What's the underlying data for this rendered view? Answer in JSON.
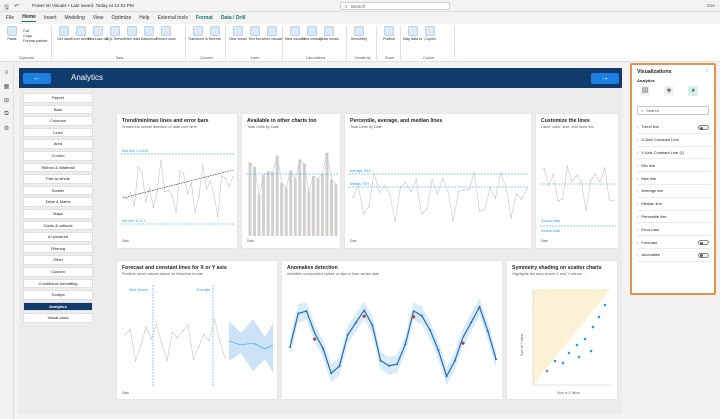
{
  "titlebar": {
    "qa_icons": [
      "save-icon",
      "undo-icon"
    ],
    "title": "Power BI Visuals • Last saved: Today at 12:51 PM",
    "search_icon": "⌕",
    "search": "Search",
    "user": "Zoe"
  },
  "tabs": [
    "File",
    "Home",
    "Insert",
    "Modeling",
    "View",
    "Optimize",
    "Help",
    "External tools",
    "Format",
    "Data / Drill"
  ],
  "ribbon": {
    "groups": [
      {
        "name": "Clipboard",
        "small": [
          "Cut",
          "Copy",
          "Format painter"
        ],
        "buttons": [
          "Paste"
        ]
      },
      {
        "name": "Data",
        "buttons": [
          "Get data",
          "Excel workbook",
          "OneLake data hub",
          "SQL Server",
          "Enter data",
          "Dataverse",
          "Recent sources"
        ]
      },
      {
        "name": "Queries",
        "buttons": [
          "Transform data",
          "Refresh"
        ]
      },
      {
        "name": "Insert",
        "buttons": [
          "New visual",
          "Text box",
          "More visuals"
        ]
      },
      {
        "name": "Calculations",
        "buttons": [
          "New visual calculation",
          "New measure",
          "Quick measure"
        ]
      },
      {
        "name": "Sensitivity",
        "buttons": [
          "Sensitivity"
        ]
      },
      {
        "name": "Share",
        "buttons": [
          "Publish"
        ]
      },
      {
        "name": "Copilot",
        "buttons": [
          "Map data to ...",
          "Copilot"
        ]
      }
    ]
  },
  "leftnav": {
    "icons": [
      "≡",
      "▦",
      "⊞",
      "⧉",
      "⚙"
    ]
  },
  "page": {
    "title": "Analytics",
    "back_icon": "←",
    "next_icon": "→",
    "sidebar": [
      "Report",
      "Bars",
      "Columns",
      "Lines",
      "Area",
      "Combo",
      "Ribbon & Waterfall",
      "Part-to-whole",
      "Scatter",
      "Table & Matrix",
      "Maps",
      "Cards & callouts",
      "AI powered",
      "Filtering",
      "Other",
      "Custom",
      "Conditional formatting",
      "Tooltips",
      "Analytics",
      "Visual calcs"
    ],
    "active_item": "Analytics"
  },
  "cards": [
    {
      "title": "Trend/min/max lines and error bars",
      "sub": "Shows the overall direction of data over time",
      "labels": {
        "top": "Max line: 174,449",
        "mid": "Min line: 41,171"
      },
      "axis": "Date"
    },
    {
      "title": "Available in other charts too",
      "sub": "Total Units by Date",
      "axis": "Date"
    },
    {
      "title": "Percentile, average, and median lines",
      "sub": "Total Units by Date",
      "labels": {
        "a": "Average: 99,9 ...",
        "b": "Median: 79,9 ..."
      },
      "axis": "Date"
    },
    {
      "title": "Customize the lines",
      "sub": "Label, color, size, and more too",
      "labels": {
        "a": "Custom label",
        "b": "Custom label"
      },
      "axis": "Date"
    },
    {
      "title": "Forecast and constant lines for X or Y axis",
      "sub": "Predicts future values based on historical trends",
      "labels": {
        "a": "Start of trend",
        "b": "End date"
      },
      "axis": "Date"
    },
    {
      "title": "Anomalies detection",
      "sub": "Identifies unexpected spikes or dips in time series data"
    },
    {
      "title": "Symmetry shading on scatter charts",
      "sub": "Highlights the area where X and Y values ...",
      "xlabel": "Sum of X Value",
      "ylabel": "Sum of Y Value"
    }
  ],
  "visualizations": {
    "title": "Visualizations",
    "close_icon": "‹",
    "subtitle": "Analytics",
    "tool_icons": [
      "▤",
      "◈",
      "◕"
    ],
    "search_icon": "⌕",
    "search_placeholder": "Search",
    "chevron": "›",
    "items": [
      {
        "label": "Trend line",
        "toggle": true
      },
      {
        "label": "X-Axis Constant Line",
        "toggle": false
      },
      {
        "label": "Y-Axis Constant Line (1)",
        "toggle": false
      },
      {
        "label": "Min line",
        "toggle": false
      },
      {
        "label": "Max line",
        "toggle": false
      },
      {
        "label": "Average line",
        "toggle": false
      },
      {
        "label": "Median line",
        "toggle": false
      },
      {
        "label": "Percentile line",
        "toggle": false
      },
      {
        "label": "Error bars",
        "toggle": false
      },
      {
        "label": "Forecast",
        "toggle": true
      },
      {
        "label": "Anomalies",
        "toggle": true
      }
    ]
  },
  "colors": {
    "header": "#123b6d",
    "accent": "#1a7fe0",
    "ref": "#2b9af3",
    "highlight": "#e2934a"
  }
}
